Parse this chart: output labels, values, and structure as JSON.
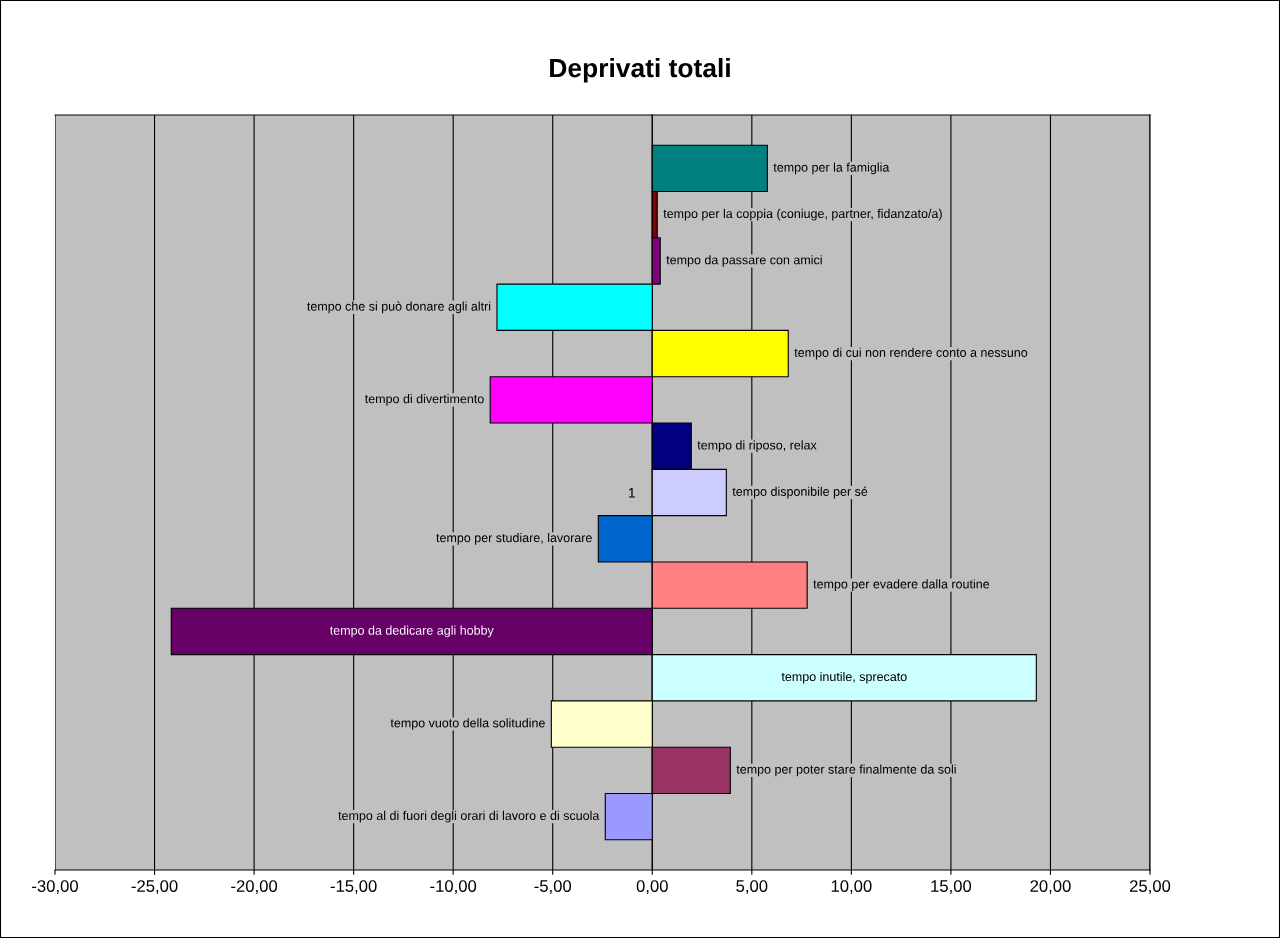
{
  "chart_data": {
    "type": "bar",
    "orientation": "horizontal",
    "title": "Deprivati totali",
    "categories": [
      "1"
    ],
    "series": [
      {
        "name": "tempo per la famiglia",
        "color": "#008080",
        "values": [
          5.78
        ]
      },
      {
        "name": "tempo per la coppia (coniuge, partner, fidanzato/a)",
        "color": "#800000",
        "values": [
          0.25
        ]
      },
      {
        "name": "tempo da passare con amici",
        "color": "#800080",
        "values": [
          0.4
        ]
      },
      {
        "name": "tempo che si può donare agli altri",
        "color": "#00ffff",
        "values": [
          -7.8
        ]
      },
      {
        "name": "tempo di cui non rendere conto a nessuno",
        "color": "#ffff00",
        "values": [
          6.83
        ]
      },
      {
        "name": "tempo di divertimento",
        "color": "#ff00ff",
        "values": [
          -8.14
        ]
      },
      {
        "name": "tempo di riposo, relax",
        "color": "#000080",
        "values": [
          1.96
        ]
      },
      {
        "name": "tempo disponibile per sé",
        "color": "#ccccff",
        "values": [
          3.72
        ]
      },
      {
        "name": "tempo per studiare, lavorare",
        "color": "#0066cc",
        "values": [
          -2.71
        ]
      },
      {
        "name": "tempo per evadere dalla routine",
        "color": "#ff8080",
        "values": [
          7.78
        ]
      },
      {
        "name": "tempo da dedicare agli hobby",
        "color": "#660066",
        "values": [
          -24.16
        ]
      },
      {
        "name": "tempo inutile, sprecato",
        "color": "#ccffff",
        "values": [
          19.29
        ]
      },
      {
        "name": "tempo vuoto della solitudine",
        "color": "#ffffcc",
        "values": [
          -5.07
        ]
      },
      {
        "name": "tempo per poter stare finalmente da soli",
        "color": "#993366",
        "values": [
          3.92
        ]
      },
      {
        "name": "tempo al di fuori degli orari di lavoro e di scuola",
        "color": "#9999ff",
        "values": [
          -2.36
        ]
      }
    ],
    "xlim": [
      -30,
      25
    ],
    "xticks": [
      {
        "value": -30,
        "label": "-30,00"
      },
      {
        "value": -25,
        "label": "-25,00"
      },
      {
        "value": -20,
        "label": "-20,00"
      },
      {
        "value": -15,
        "label": "-15,00"
      },
      {
        "value": -10,
        "label": "-10,00"
      },
      {
        "value": -5,
        "label": "-5,00"
      },
      {
        "value": 0,
        "label": "0,00"
      },
      {
        "value": 5,
        "label": "5,00"
      },
      {
        "value": 10,
        "label": "10,00"
      },
      {
        "value": 15,
        "label": "15,00"
      },
      {
        "value": 20,
        "label": "20,00"
      },
      {
        "value": 25,
        "label": "25,00"
      }
    ],
    "grid": "x",
    "legend": false
  }
}
